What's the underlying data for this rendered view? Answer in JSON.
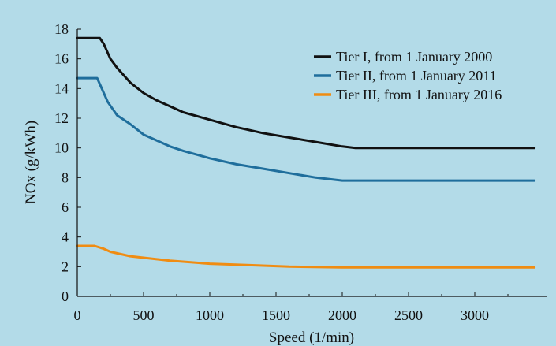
{
  "chart_data": {
    "type": "line",
    "xlabel": "Speed (1/min)",
    "ylabel": "NOx (g/kWh)",
    "xlim": [
      0,
      3500
    ],
    "ylim": [
      0,
      18
    ],
    "xticks": [
      0,
      500,
      1000,
      1500,
      2000,
      2500,
      3000
    ],
    "yticks": [
      0,
      2,
      4,
      6,
      8,
      10,
      12,
      14,
      16,
      18
    ],
    "grid": false,
    "legend_position": "top-right",
    "series": [
      {
        "name": "Tier I, from 1 January 2000",
        "color": "#111111",
        "x": [
          0,
          130,
          170,
          200,
          250,
          300,
          400,
          500,
          600,
          700,
          800,
          1000,
          1200,
          1400,
          1600,
          1800,
          2000,
          2100,
          2500,
          3000,
          3450
        ],
        "y": [
          17.4,
          17.4,
          17.4,
          17.0,
          16.0,
          15.4,
          14.4,
          13.7,
          13.2,
          12.8,
          12.4,
          11.9,
          11.4,
          11.0,
          10.7,
          10.4,
          10.1,
          10.0,
          10.0,
          10.0,
          10.0
        ]
      },
      {
        "name": "Tier II, from 1 January 2011",
        "color": "#1f6e9c",
        "x": [
          0,
          110,
          150,
          180,
          230,
          300,
          400,
          500,
          600,
          700,
          800,
          1000,
          1200,
          1400,
          1600,
          1800,
          2000,
          2500,
          3000,
          3450
        ],
        "y": [
          14.7,
          14.7,
          14.7,
          14.1,
          13.1,
          12.2,
          11.6,
          10.9,
          10.5,
          10.1,
          9.8,
          9.3,
          8.9,
          8.6,
          8.3,
          8.0,
          7.8,
          7.8,
          7.8,
          7.8
        ]
      },
      {
        "name": "Tier III, from 1 January 2016",
        "color": "#f08c12",
        "x": [
          0,
          130,
          200,
          250,
          300,
          400,
          500,
          700,
          1000,
          1300,
          1600,
          2000,
          2500,
          3000,
          3450
        ],
        "y": [
          3.4,
          3.4,
          3.2,
          3.0,
          2.9,
          2.7,
          2.6,
          2.4,
          2.2,
          2.1,
          2.0,
          1.95,
          1.95,
          1.95,
          1.95
        ]
      }
    ]
  }
}
